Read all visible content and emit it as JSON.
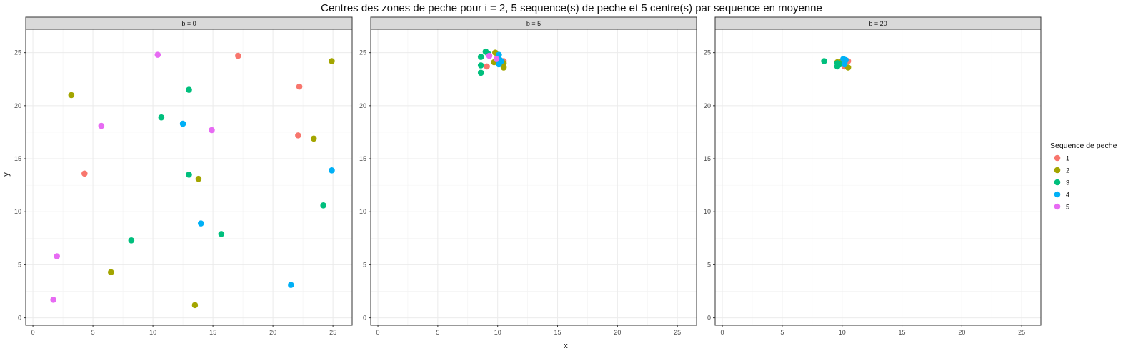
{
  "chart_data": {
    "type": "scatter",
    "title": "Centres des zones de peche pour i = 2, 5 sequence(s) de peche et 5 centre(s) par sequence en moyenne",
    "xlabel": "x",
    "ylabel": "y",
    "xlim": [
      -0.6,
      26.6
    ],
    "ylim": [
      -0.7,
      27.2
    ],
    "x_ticks": [
      0,
      5,
      10,
      15,
      20,
      25
    ],
    "y_ticks": [
      0,
      5,
      10,
      15,
      20,
      25
    ],
    "grid": true,
    "legend": {
      "title": "Sequence de peche",
      "position": "right",
      "entries": [
        {
          "label": "1",
          "color": "#F8766D"
        },
        {
          "label": "2",
          "color": "#A3A500"
        },
        {
          "label": "3",
          "color": "#00BF7D"
        },
        {
          "label": "4",
          "color": "#00B0F6"
        },
        {
          "label": "5",
          "color": "#E76BF3"
        }
      ]
    },
    "panels": [
      {
        "strip": "b = 0",
        "series": [
          {
            "name": "1",
            "points": [
              [
                17.1,
                24.7
              ],
              [
                22.2,
                21.8
              ],
              [
                22.1,
                17.2
              ],
              [
                4.3,
                13.6
              ]
            ]
          },
          {
            "name": "2",
            "points": [
              [
                3.2,
                21.0
              ],
              [
                24.9,
                24.2
              ],
              [
                23.4,
                16.9
              ],
              [
                13.8,
                13.1
              ],
              [
                6.5,
                4.3
              ],
              [
                13.5,
                1.2
              ]
            ]
          },
          {
            "name": "3",
            "points": [
              [
                13.0,
                21.5
              ],
              [
                10.7,
                18.9
              ],
              [
                13.0,
                13.5
              ],
              [
                24.2,
                10.6
              ],
              [
                8.2,
                7.3
              ],
              [
                15.7,
                7.9
              ]
            ]
          },
          {
            "name": "4",
            "points": [
              [
                12.5,
                18.3
              ],
              [
                24.9,
                13.9
              ],
              [
                14.0,
                8.9
              ],
              [
                21.5,
                3.1
              ]
            ]
          },
          {
            "name": "5",
            "points": [
              [
                10.4,
                24.8
              ],
              [
                5.7,
                18.1
              ],
              [
                14.9,
                17.7
              ],
              [
                2.0,
                5.8
              ],
              [
                1.7,
                1.7
              ]
            ]
          }
        ]
      },
      {
        "strip": "b = 5",
        "series": [
          {
            "name": "1",
            "points": [
              [
                9.1,
                23.7
              ],
              [
                10.5,
                24.2
              ]
            ]
          },
          {
            "name": "2",
            "points": [
              [
                9.8,
                25.0
              ],
              [
                9.7,
                24.1
              ],
              [
                10.5,
                24.0
              ],
              [
                10.5,
                23.6
              ]
            ]
          },
          {
            "name": "3",
            "points": [
              [
                9.0,
                25.1
              ],
              [
                8.6,
                24.6
              ],
              [
                8.6,
                23.8
              ],
              [
                8.6,
                23.1
              ],
              [
                9.2,
                24.9
              ]
            ]
          },
          {
            "name": "4",
            "points": [
              [
                10.1,
                24.8
              ],
              [
                10.2,
                24.3
              ],
              [
                10.1,
                23.9
              ],
              [
                10.3,
                24.2
              ]
            ]
          },
          {
            "name": "5",
            "points": [
              [
                9.3,
                24.7
              ],
              [
                9.9,
                24.4
              ]
            ]
          }
        ]
      },
      {
        "strip": "b = 20",
        "series": [
          {
            "name": "1",
            "points": [
              [
                10.2,
                23.7
              ],
              [
                10.5,
                24.2
              ]
            ]
          },
          {
            "name": "2",
            "points": [
              [
                9.6,
                24.1
              ],
              [
                10.0,
                24.2
              ],
              [
                10.5,
                23.6
              ]
            ]
          },
          {
            "name": "3",
            "points": [
              [
                8.5,
                24.2
              ],
              [
                9.6,
                23.7
              ],
              [
                9.8,
                23.9
              ],
              [
                9.6,
                24.0
              ]
            ]
          },
          {
            "name": "4",
            "points": [
              [
                10.1,
                24.4
              ],
              [
                10.3,
                24.3
              ],
              [
                10.2,
                23.9
              ]
            ]
          },
          {
            "name": "5",
            "points": []
          }
        ]
      }
    ]
  }
}
